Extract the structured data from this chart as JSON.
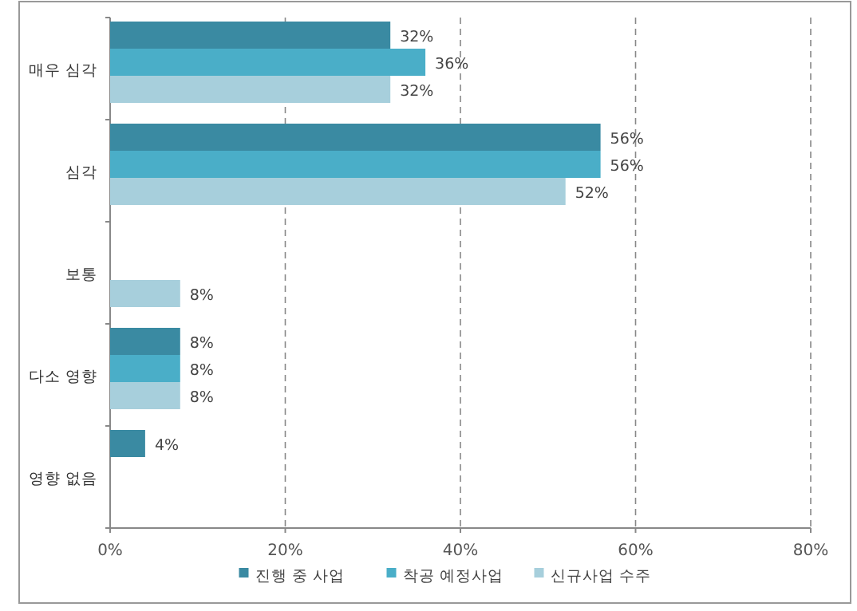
{
  "chart_data": {
    "type": "bar",
    "orientation": "horizontal",
    "categories": [
      "매우 심각",
      "심각",
      "보통",
      "다소 영향",
      "영향 없음"
    ],
    "series": [
      {
        "name": "진행 중 사업",
        "color": "#3a8aa2",
        "values": [
          32,
          56,
          null,
          8,
          4
        ],
        "value_labels": [
          "32%",
          "56%",
          null,
          "8%",
          "4%"
        ]
      },
      {
        "name": "착공 예정사업",
        "color": "#4aaec8",
        "values": [
          36,
          56,
          null,
          8,
          null
        ],
        "value_labels": [
          "36%",
          "56%",
          null,
          "8%",
          null
        ]
      },
      {
        "name": "신규사업 수주",
        "color": "#a7cfdc",
        "values": [
          32,
          52,
          8,
          8,
          null
        ],
        "value_labels": [
          "32%",
          "52%",
          "8%",
          "8%",
          null
        ]
      }
    ],
    "xlim": [
      0,
      80
    ],
    "xticks": [
      {
        "value": 0,
        "label": "0%"
      },
      {
        "value": 20,
        "label": "20%"
      },
      {
        "value": 40,
        "label": "40%"
      },
      {
        "value": 60,
        "label": "60%"
      },
      {
        "value": 80,
        "label": "80%"
      }
    ],
    "grid": "x",
    "legend": "bottom"
  }
}
